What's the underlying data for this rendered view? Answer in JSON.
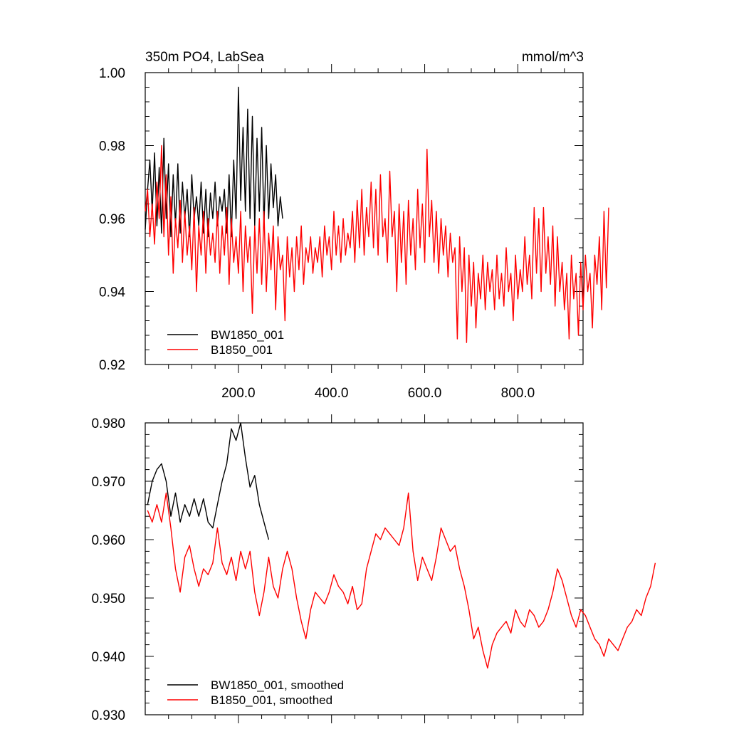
{
  "chart_data": [
    {
      "type": "line",
      "title_left": "350m PO4, LabSea",
      "title_right": "mmol/m^3",
      "xlabel": "",
      "ylabel": "",
      "xlim": [
        0,
        940
      ],
      "ylim": [
        0.92,
        1.0
      ],
      "xticks": [
        200,
        400,
        600,
        800
      ],
      "xtick_labels": [
        "200.0",
        "400.0",
        "600.0",
        "800.0"
      ],
      "yticks": [
        0.92,
        0.94,
        0.96,
        0.98,
        1.0
      ],
      "ytick_labels": [
        "0.92",
        "0.94",
        "0.96",
        "0.98",
        "1.00"
      ],
      "grid": false,
      "legend_position": "bottom-left",
      "series": [
        {
          "name": "BW1850_001",
          "color": "#000000",
          "x_start": 0,
          "x_step": 5,
          "values": [
            0.957,
            0.968,
            0.976,
            0.962,
            0.978,
            0.958,
            0.974,
            0.956,
            0.982,
            0.96,
            0.975,
            0.955,
            0.972,
            0.958,
            0.975,
            0.956,
            0.97,
            0.96,
            0.968,
            0.955,
            0.972,
            0.96,
            0.966,
            0.958,
            0.97,
            0.956,
            0.968,
            0.955,
            0.967,
            0.96,
            0.97,
            0.958,
            0.966,
            0.962,
            0.968,
            0.956,
            0.972,
            0.955,
            0.976,
            0.96,
            0.996,
            0.965,
            0.985,
            0.962,
            0.99,
            0.96,
            0.988,
            0.958,
            0.982,
            0.962,
            0.985,
            0.958,
            0.98,
            0.96,
            0.975,
            0.963,
            0.972,
            0.958,
            0.966,
            0.96
          ]
        },
        {
          "name": "B1850_001",
          "color": "#ff0000",
          "x_start": 0,
          "x_step": 5,
          "values": [
            0.962,
            0.968,
            0.955,
            0.964,
            0.953,
            0.97,
            0.96,
            0.98,
            0.955,
            0.972,
            0.95,
            0.966,
            0.945,
            0.96,
            0.952,
            0.965,
            0.948,
            0.962,
            0.95,
            0.958,
            0.946,
            0.963,
            0.94,
            0.958,
            0.95,
            0.962,
            0.945,
            0.96,
            0.95,
            0.956,
            0.948,
            0.962,
            0.945,
            0.958,
            0.95,
            0.963,
            0.942,
            0.96,
            0.948,
            0.955,
            0.945,
            0.962,
            0.94,
            0.958,
            0.948,
            0.955,
            0.934,
            0.958,
            0.945,
            0.96,
            0.942,
            0.962,
            0.94,
            0.956,
            0.946,
            0.958,
            0.935,
            0.955,
            0.946,
            0.95,
            0.932,
            0.955,
            0.944,
            0.952,
            0.94,
            0.955,
            0.946,
            0.958,
            0.942,
            0.952,
            0.948,
            0.955,
            0.945,
            0.952,
            0.948,
            0.955,
            0.944,
            0.958,
            0.95,
            0.955,
            0.946,
            0.962,
            0.95,
            0.958,
            0.948,
            0.96,
            0.95,
            0.956,
            0.952,
            0.962,
            0.948,
            0.965,
            0.952,
            0.968,
            0.95,
            0.963,
            0.955,
            0.97,
            0.952,
            0.968,
            0.95,
            0.972,
            0.955,
            0.96,
            0.948,
            0.973,
            0.955,
            0.962,
            0.94,
            0.964,
            0.948,
            0.962,
            0.942,
            0.965,
            0.95,
            0.96,
            0.946,
            0.968,
            0.952,
            0.964,
            0.948,
            0.979,
            0.955,
            0.965,
            0.948,
            0.962,
            0.945,
            0.96,
            0.95,
            0.958,
            0.944,
            0.956,
            0.948,
            0.952,
            0.927,
            0.955,
            0.94,
            0.952,
            0.926,
            0.95,
            0.936,
            0.948,
            0.93,
            0.945,
            0.938,
            0.95,
            0.935,
            0.948,
            0.94,
            0.946,
            0.935,
            0.95,
            0.938,
            0.945,
            0.936,
            0.952,
            0.94,
            0.945,
            0.932,
            0.95,
            0.938,
            0.946,
            0.94,
            0.955,
            0.942,
            0.95,
            0.938,
            0.963,
            0.945,
            0.96,
            0.94,
            0.963,
            0.945,
            0.955,
            0.942,
            0.958,
            0.936,
            0.955,
            0.94,
            0.948,
            0.935,
            0.945,
            0.927,
            0.95,
            0.938,
            0.945,
            0.928,
            0.948,
            0.935,
            0.95,
            0.94,
            0.945,
            0.93,
            0.95,
            0.942,
            0.955,
            0.935,
            0.962,
            0.941,
            0.963
          ]
        }
      ]
    },
    {
      "type": "line",
      "xlabel": "",
      "ylabel": "",
      "xlim": [
        0,
        940
      ],
      "ylim": [
        0.93,
        0.98
      ],
      "xticks": [
        200,
        400,
        600,
        800
      ],
      "yticks": [
        0.93,
        0.94,
        0.95,
        0.96,
        0.97,
        0.98
      ],
      "ytick_labels": [
        "0.930",
        "0.940",
        "0.950",
        "0.960",
        "0.970",
        "0.980"
      ],
      "grid": false,
      "legend_position": "bottom-left",
      "series": [
        {
          "name": "BW1850_001, smoothed",
          "color": "#000000",
          "x_start": 5,
          "x_step": 10,
          "values": [
            0.966,
            0.97,
            0.972,
            0.973,
            0.97,
            0.964,
            0.968,
            0.963,
            0.966,
            0.964,
            0.967,
            0.964,
            0.967,
            0.963,
            0.962,
            0.966,
            0.97,
            0.973,
            0.979,
            0.977,
            0.98,
            0.974,
            0.969,
            0.971,
            0.966,
            0.963,
            0.96
          ]
        },
        {
          "name": "B1850_001, smoothed",
          "color": "#ff0000",
          "x_start": 5,
          "x_step": 10,
          "values": [
            0.965,
            0.963,
            0.966,
            0.963,
            0.968,
            0.962,
            0.955,
            0.951,
            0.957,
            0.959,
            0.955,
            0.952,
            0.955,
            0.954,
            0.956,
            0.962,
            0.956,
            0.954,
            0.957,
            0.953,
            0.958,
            0.955,
            0.958,
            0.951,
            0.947,
            0.951,
            0.957,
            0.952,
            0.95,
            0.955,
            0.958,
            0.955,
            0.95,
            0.946,
            0.943,
            0.948,
            0.951,
            0.95,
            0.949,
            0.951,
            0.954,
            0.952,
            0.951,
            0.949,
            0.952,
            0.948,
            0.949,
            0.955,
            0.958,
            0.961,
            0.96,
            0.962,
            0.961,
            0.96,
            0.959,
            0.962,
            0.968,
            0.958,
            0.953,
            0.957,
            0.955,
            0.953,
            0.957,
            0.962,
            0.96,
            0.958,
            0.959,
            0.955,
            0.952,
            0.948,
            0.943,
            0.945,
            0.941,
            0.938,
            0.942,
            0.944,
            0.945,
            0.946,
            0.944,
            0.948,
            0.946,
            0.945,
            0.948,
            0.947,
            0.945,
            0.946,
            0.948,
            0.951,
            0.955,
            0.953,
            0.95,
            0.947,
            0.945,
            0.948,
            0.947,
            0.945,
            0.943,
            0.942,
            0.94,
            0.943,
            0.942,
            0.941,
            0.943,
            0.945,
            0.946,
            0.948,
            0.947,
            0.95,
            0.952,
            0.956
          ]
        }
      ]
    }
  ]
}
